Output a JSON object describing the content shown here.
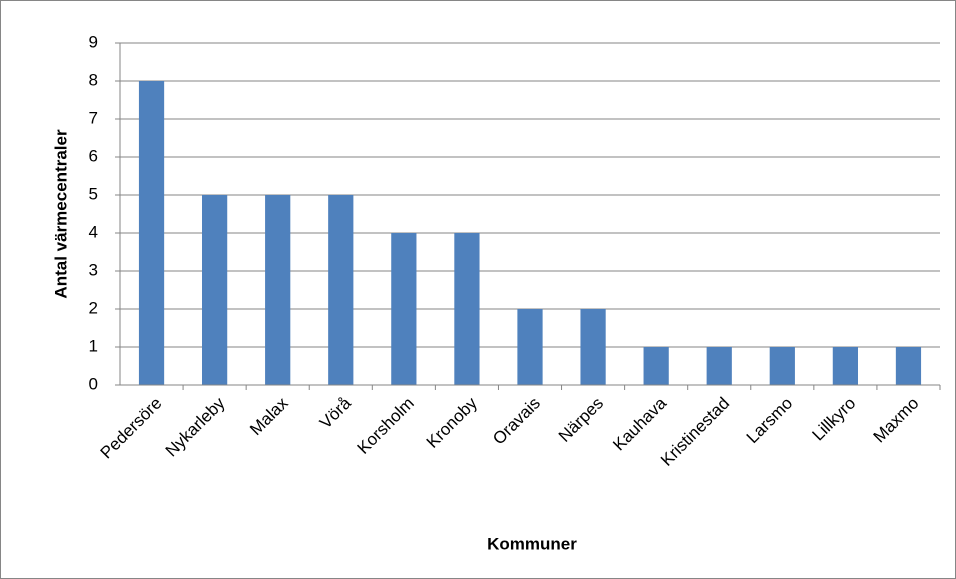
{
  "chart_data": {
    "type": "bar",
    "categories": [
      "Pedersöre",
      "Nykarleby",
      "Malax",
      "Vörå",
      "Korsholm",
      "Kronoby",
      "Oravais",
      "Närpes",
      "Kauhava",
      "Kristinestad",
      "Larsmo",
      "Lillkyro",
      "Maxmo"
    ],
    "values": [
      8,
      5,
      5,
      5,
      4,
      4,
      2,
      2,
      1,
      1,
      1,
      1,
      1
    ],
    "color": "#4f81bd",
    "ylim": [
      0,
      9
    ],
    "yticks": [
      0,
      1,
      2,
      3,
      4,
      5,
      6,
      7,
      8,
      9
    ],
    "grid": true,
    "x_label": "Kommuner",
    "y_label": "Antal värmecentraler"
  }
}
